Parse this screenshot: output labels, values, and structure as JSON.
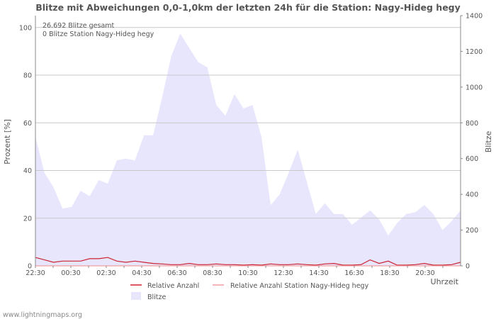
{
  "chart_data": {
    "type": "area",
    "title": "Blitze mit Abweichungen 0,0-1,0km der letzten 24h für die Station: Nagy-Hideg hegy",
    "xlabel": "Uhrzeit",
    "ylabel_left": "Prozent   [%]",
    "ylabel_right": "Blitze",
    "ylim_left": [
      0,
      105
    ],
    "ylim_right": [
      0,
      1400
    ],
    "left_ticks": [
      0,
      20,
      40,
      60,
      80,
      100
    ],
    "right_ticks": [
      0,
      200,
      400,
      600,
      800,
      1000,
      1200,
      1400
    ],
    "x_tick_labels": [
      "22:30",
      "00:30",
      "02:30",
      "04:30",
      "06:30",
      "08:30",
      "10:30",
      "12:30",
      "14:30",
      "16:30",
      "18:30",
      "20:30"
    ],
    "annotations": [
      "26.692 Blitze gesamt",
      "0 Blitze Station Nagy-Hideg hegy"
    ],
    "series": [
      {
        "name": "Blitze",
        "axis": "right",
        "color": "#e8e6fc",
        "values": [
          722,
          520,
          440,
          320,
          330,
          420,
          390,
          480,
          460,
          590,
          600,
          590,
          730,
          730,
          940,
          1170,
          1300,
          1220,
          1140,
          1110,
          900,
          840,
          960,
          880,
          900,
          720,
          340,
          400,
          520,
          650,
          470,
          290,
          350,
          290,
          290,
          230,
          270,
          310,
          260,
          170,
          240,
          290,
          300,
          340,
          290,
          200,
          250,
          310
        ]
      },
      {
        "name": "Relative Anzahl",
        "axis": "left",
        "color": "#cc2233",
        "values": [
          3.5,
          2.5,
          1.5,
          2,
          2,
          2,
          3,
          3,
          3.5,
          2,
          1.5,
          2,
          1.5,
          1,
          0.8,
          0.5,
          0.5,
          1,
          0.5,
          0.5,
          0.8,
          0.5,
          0.5,
          0.3,
          0.5,
          0.3,
          0.8,
          0.5,
          0.5,
          0.8,
          0.5,
          0.3,
          0.8,
          1,
          0.3,
          0.3,
          0.5,
          2.5,
          1,
          2,
          0.3,
          0.3,
          0.5,
          1,
          0.3,
          0.3,
          0.5,
          1.5
        ]
      },
      {
        "name": "Relative Anzahl Station Nagy-Hideg hegy",
        "axis": "left",
        "color": "#f0a0a0",
        "values": [
          0,
          0,
          0,
          0,
          0,
          0,
          0,
          0,
          0,
          0,
          0,
          0,
          0,
          0,
          0,
          0,
          0,
          0,
          0,
          0,
          0,
          0,
          0,
          0,
          0,
          0,
          0,
          0,
          0,
          0,
          0,
          0,
          0,
          0,
          0,
          0,
          0,
          0,
          0,
          0,
          0,
          0,
          0,
          0,
          0,
          0,
          0,
          0
        ]
      }
    ],
    "legend": [
      {
        "label": "Relative Anzahl",
        "kind": "line",
        "color": "#cc2233"
      },
      {
        "label": "Relative Anzahl Station Nagy-Hideg hegy",
        "kind": "line",
        "color": "#f0a0a0"
      },
      {
        "label": "Blitze",
        "kind": "box",
        "color": "#e8e6fc"
      }
    ]
  },
  "footer": {
    "credit": "www.lightningmaps.org"
  }
}
